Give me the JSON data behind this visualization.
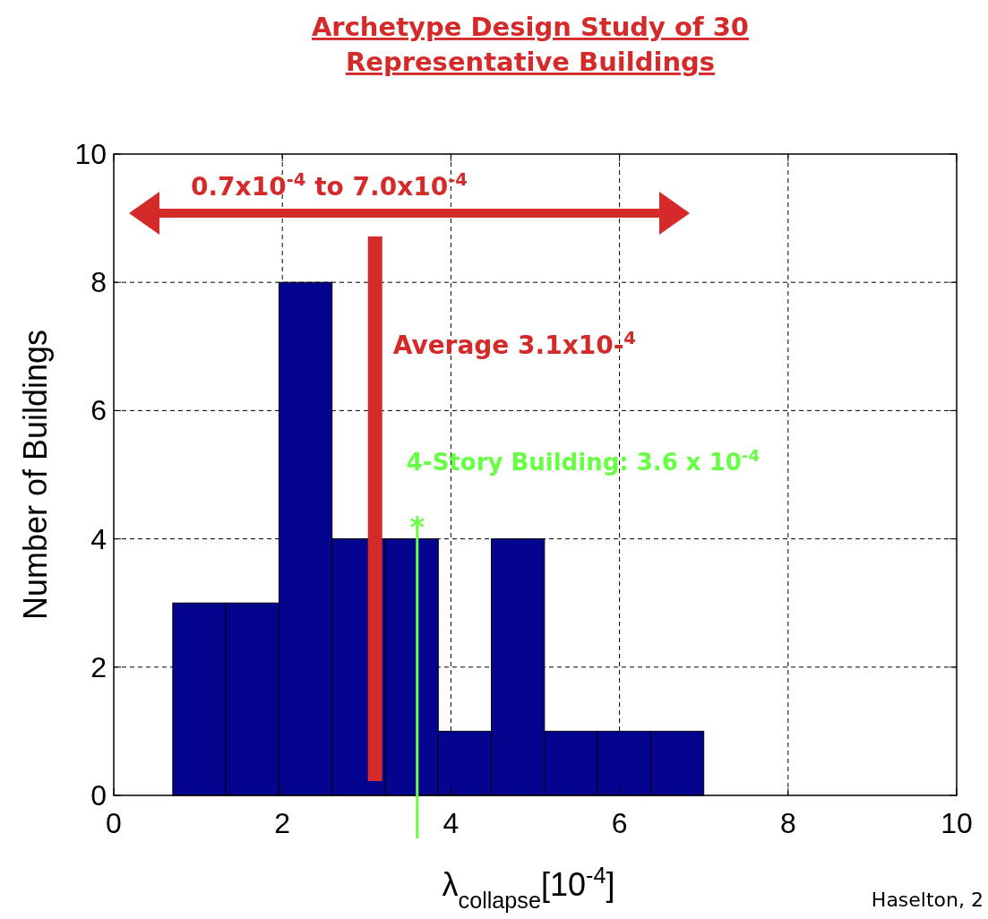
{
  "chart_data": {
    "type": "histogram",
    "title": "Archetype Design Study of 30 Representative Buildings",
    "xlabel": "λ$_{collapse}$[10$^{-4}$]",
    "ylabel": "Number of Buildings",
    "bins": [
      0.7,
      1.33,
      1.96,
      2.59,
      3.22,
      3.85,
      4.48,
      5.11,
      5.74,
      6.37,
      7.0
    ],
    "values": [
      3,
      3,
      8,
      4,
      4,
      1,
      4,
      1,
      1,
      1
    ],
    "color": "#04048f",
    "xlim": [
      0,
      10
    ],
    "xticks": [
      0,
      2,
      4,
      6,
      8,
      10
    ],
    "ylim": [
      0,
      10
    ],
    "yticks": [
      0,
      2,
      4,
      6,
      8,
      10
    ],
    "grid": true,
    "ref_lines": [
      {
        "axis": "x",
        "value": 3.1,
        "label": "Average 3.1x10-$^{4}$",
        "color": "#d42a2a"
      },
      {
        "axis": "x",
        "value": 3.6,
        "label": "4-Story Building: 3.6 x 10$^{-4}$",
        "color": "#66ff44"
      }
    ],
    "annotations": [
      "0.7x10$^{-4}$ to 7.0x10$^{-4}$",
      {
        "text": "*",
        "x": 3.6,
        "y": 4.2
      },
      "Haselton, 2"
    ]
  }
}
